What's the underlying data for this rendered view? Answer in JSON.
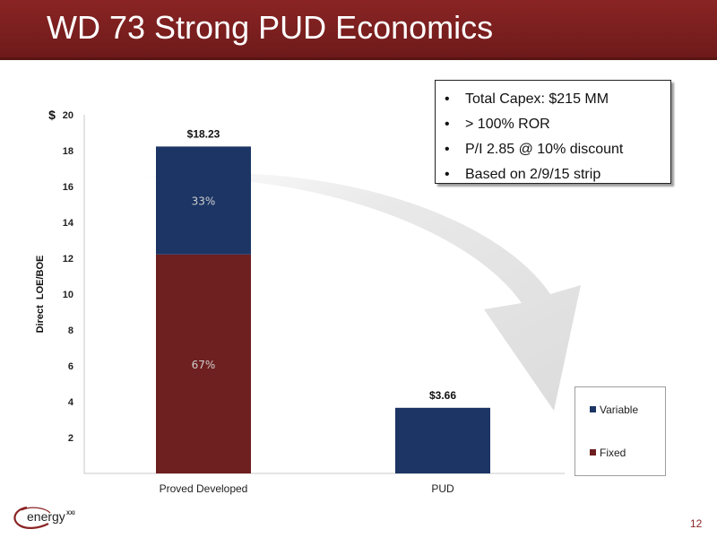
{
  "slide": {
    "title": "WD 73 Strong PUD Economics",
    "page_number": "12",
    "logo_text": "energy",
    "logo_superscript": "XXI"
  },
  "callout": {
    "bullets": [
      "Total Capex: $215 MM",
      "> 100% ROR",
      "P/I  2.85 @ 10% discount",
      "Based on 2/9/15 strip"
    ]
  },
  "colors": {
    "title_bar": "#7a1f1f",
    "fixed": "#6e1f1f",
    "variable": "#1c3564",
    "page_number": "#8a2424"
  },
  "chart_data": {
    "type": "bar",
    "stacked": true,
    "categories": [
      "Proved Developed",
      "PUD"
    ],
    "series": [
      {
        "name": "Fixed",
        "values": [
          12.21,
          0
        ],
        "labels": [
          "67%",
          ""
        ]
      },
      {
        "name": "Variable",
        "values": [
          6.02,
          3.66
        ],
        "labels": [
          "33%",
          ""
        ]
      }
    ],
    "totals": [
      "$18.23",
      "$3.66"
    ],
    "ylabel": "Direct  LOE/BOE",
    "yunit": "$",
    "ylim": [
      0,
      20
    ],
    "yticks": [
      2,
      4,
      6,
      8,
      10,
      12,
      14,
      16,
      18,
      20
    ],
    "legend_position": "right",
    "grid": false
  }
}
